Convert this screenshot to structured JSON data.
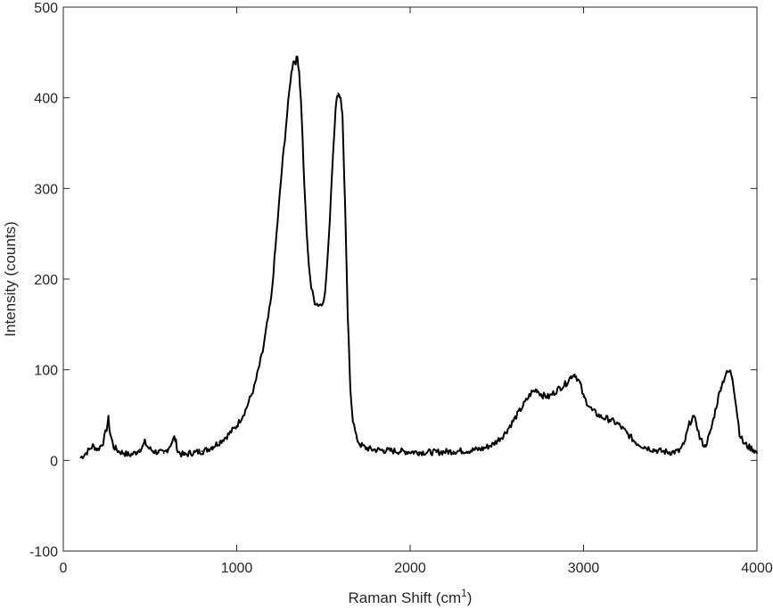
{
  "chart_data": {
    "type": "line",
    "title": "",
    "xlabel_main": "Raman Shift (cm",
    "xlabel_sup": "1",
    "xlabel_close": ")",
    "ylabel": "Intensity (counts)",
    "xlim": [
      0,
      4000
    ],
    "ylim": [
      -100,
      500
    ],
    "grid": false,
    "legend": "none",
    "line_color": "#000000",
    "x_ticks": [
      {
        "value": 0,
        "label": "0"
      },
      {
        "value": 1000,
        "label": "1000"
      },
      {
        "value": 2000,
        "label": "2000"
      },
      {
        "value": 3000,
        "label": "3000"
      },
      {
        "value": 4000,
        "label": "4000"
      }
    ],
    "y_ticks": [
      {
        "value": -100,
        "label": "-100"
      },
      {
        "value": 0,
        "label": "0"
      },
      {
        "value": 100,
        "label": "100"
      },
      {
        "value": 200,
        "label": "200"
      },
      {
        "value": 300,
        "label": "300"
      },
      {
        "value": 400,
        "label": "400"
      },
      {
        "value": 500,
        "label": "500"
      }
    ],
    "series": [
      {
        "x": [
          100,
          130,
          150,
          170,
          200,
          230,
          250,
          260,
          270,
          290,
          320,
          350,
          380,
          400,
          420,
          440,
          460,
          470,
          490,
          520,
          550,
          580,
          600,
          620,
          640,
          650,
          660,
          680,
          700,
          730,
          760,
          800,
          830,
          860,
          900,
          950,
          1000,
          1050,
          1100,
          1150,
          1200,
          1230,
          1260,
          1290,
          1310,
          1325,
          1340,
          1350,
          1360,
          1375,
          1390,
          1410,
          1430,
          1450,
          1470,
          1490,
          1510,
          1530,
          1550,
          1570,
          1585,
          1600,
          1610,
          1625,
          1640,
          1655,
          1670,
          1690,
          1710,
          1740,
          1780,
          1850,
          1950,
          2050,
          2150,
          2250,
          2350,
          2420,
          2480,
          2540,
          2600,
          2650,
          2700,
          2730,
          2760,
          2800,
          2850,
          2900,
          2930,
          2950,
          2980,
          3000,
          3050,
          3100,
          3150,
          3200,
          3250,
          3300,
          3350,
          3400,
          3450,
          3500,
          3550,
          3580,
          3610,
          3630,
          3650,
          3670,
          3700,
          3730,
          3760,
          3790,
          3820,
          3840,
          3850,
          3860,
          3880,
          3900,
          3920,
          3950,
          3980,
          3990,
          4000
        ],
        "y": [
          3,
          8,
          12,
          16,
          12,
          20,
          35,
          46,
          30,
          15,
          10,
          8,
          6,
          7,
          9,
          12,
          16,
          20,
          14,
          10,
          9,
          8,
          12,
          18,
          25,
          20,
          10,
          7,
          6,
          8,
          9,
          10,
          12,
          15,
          20,
          28,
          38,
          55,
          80,
          120,
          180,
          250,
          320,
          380,
          420,
          440,
          440,
          445,
          430,
          380,
          300,
          230,
          190,
          175,
          172,
          172,
          185,
          240,
          320,
          390,
          405,
          400,
          380,
          280,
          160,
          80,
          45,
          25,
          18,
          14,
          12,
          11,
          10,
          9,
          9,
          10,
          11,
          13,
          18,
          28,
          45,
          60,
          75,
          78,
          72,
          70,
          78,
          85,
          93,
          95,
          85,
          70,
          55,
          48,
          45,
          40,
          30,
          20,
          15,
          12,
          10,
          9,
          10,
          18,
          40,
          48,
          42,
          25,
          15,
          30,
          55,
          80,
          95,
          98,
          97,
          90,
          60,
          30,
          20,
          15,
          12,
          10,
          8
        ]
      }
    ]
  }
}
